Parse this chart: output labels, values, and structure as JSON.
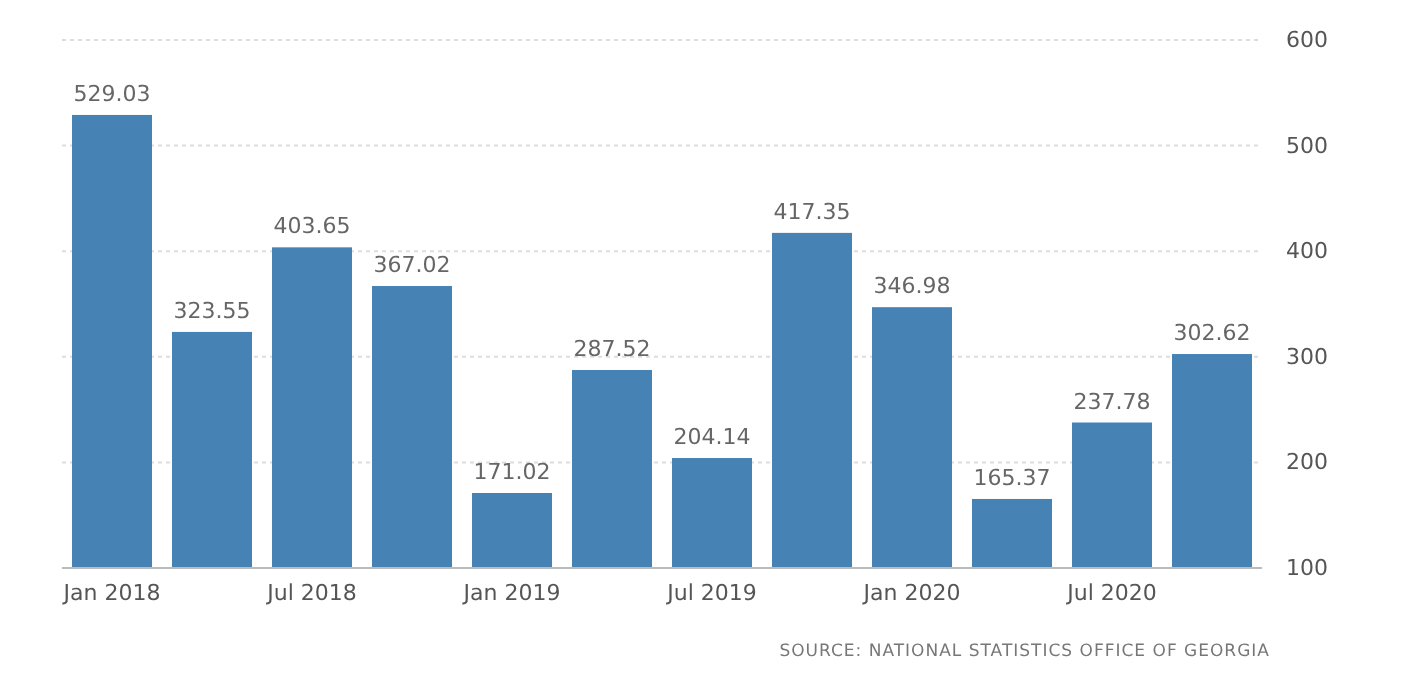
{
  "chart_data": {
    "type": "bar",
    "categories": [
      "Jan 2018",
      null,
      "Jul 2018",
      null,
      "Jan 2019",
      null,
      "Jul 2019",
      null,
      "Jan 2020",
      null,
      "Jul 2020",
      null
    ],
    "values": [
      529.03,
      323.55,
      403.65,
      367.02,
      171.02,
      287.52,
      204.14,
      417.35,
      346.98,
      165.37,
      237.78,
      302.62
    ],
    "color": "#4682b4",
    "ylim": [
      100,
      600
    ],
    "yticks": [
      100,
      200,
      300,
      400,
      500,
      600
    ],
    "grid": "y",
    "data_labels": true,
    "annotations": [
      "SOURCE: NATIONAL STATISTICS OFFICE OF GEORGIA"
    ]
  }
}
